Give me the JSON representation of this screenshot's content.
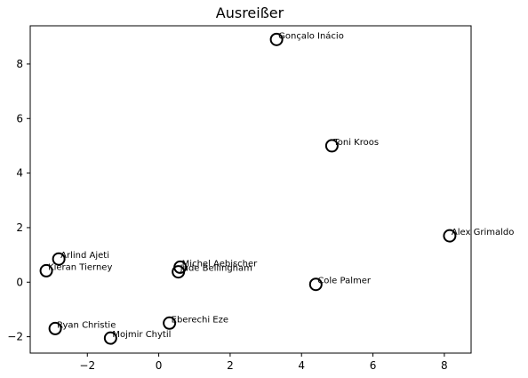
{
  "chart_data": {
    "type": "scatter",
    "title": "Ausreißer",
    "xlabel": "",
    "ylabel": "",
    "xlim": [
      -3.6,
      8.75
    ],
    "ylim": [
      -2.6,
      9.4
    ],
    "xticks": [
      -2,
      0,
      2,
      4,
      6,
      8
    ],
    "yticks": [
      -2,
      0,
      2,
      4,
      6,
      8
    ],
    "xtick_labels": [
      "−2",
      "0",
      "2",
      "4",
      "6",
      "8"
    ],
    "ytick_labels": [
      "−2",
      "0",
      "2",
      "4",
      "6",
      "8"
    ],
    "grid": false,
    "marker": "open-circle",
    "marker_color": "#000000",
    "points": [
      {
        "label": "Gonçalo Inácio",
        "x": 3.3,
        "y": 8.9
      },
      {
        "label": "Toni Kroos",
        "x": 4.85,
        "y": 5.0
      },
      {
        "label": "Alex Grimaldo",
        "x": 8.15,
        "y": 1.7
      },
      {
        "label": "Arlind Ajeti",
        "x": -2.8,
        "y": 0.85
      },
      {
        "label": "Kieran Tierney",
        "x": -3.15,
        "y": 0.42
      },
      {
        "label": "Michel Aebischer",
        "x": 0.6,
        "y": 0.55
      },
      {
        "label": "Jude Bellingham",
        "x": 0.55,
        "y": 0.38
      },
      {
        "label": "Cole Palmer",
        "x": 4.4,
        "y": -0.08
      },
      {
        "label": "Eberechi Eze",
        "x": 0.3,
        "y": -1.5
      },
      {
        "label": "Ryan Christie",
        "x": -2.9,
        "y": -1.7
      },
      {
        "label": "Mojmir Chytil",
        "x": -1.35,
        "y": -2.05
      }
    ]
  }
}
